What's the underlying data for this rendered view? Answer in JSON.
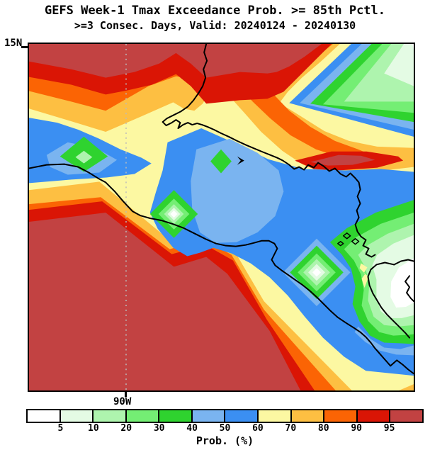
{
  "title": {
    "line1": "GEFS Week-1 Tmax Exceedance Prob. >= 85th Pctl.",
    "line2": ">=3 Consec. Days, Valid: 20240124 - 20240130"
  },
  "map": {
    "y_axis_label": "15N",
    "x_axis_label": "90W"
  },
  "palette": {
    "p0": "#ffffff",
    "p5": "#e4fbe4",
    "p10": "#aef4ae",
    "p20": "#74ee74",
    "p30": "#2fd32f",
    "p40": "#7ab4f0",
    "p50": "#3b8ff2",
    "p60": "#fcf8a2",
    "p70": "#fdbf42",
    "p80": "#fb6404",
    "p90": "#da1505",
    "p95": "#c24242",
    "coastline": "#000000",
    "gridline": "#bbbbbb"
  },
  "colorbar": {
    "label": "Prob. (%)",
    "tick_labels": [
      "5",
      "10",
      "20",
      "30",
      "40",
      "50",
      "60",
      "70",
      "80",
      "90",
      "95"
    ],
    "segment_colors": [
      "#ffffff",
      "#e4fbe4",
      "#aef4ae",
      "#74ee74",
      "#2fd32f",
      "#7ab4f0",
      "#3b8ff2",
      "#fcf8a2",
      "#fdbf42",
      "#fb6404",
      "#da1505",
      "#c24242"
    ]
  },
  "chart_data": {
    "type": "heatmap",
    "title": "GEFS Week-1 Tmax Exceedance Prob. >= 85th Pctl.",
    "subtitle": ">=3 Consec. Days, Valid: 20240124 - 20240130",
    "variable": "Probability (%) of Tmax >= 85th percentile for >=3 consecutive days",
    "units": "%",
    "legend_thresholds": [
      5,
      10,
      20,
      30,
      40,
      50,
      60,
      70,
      80,
      90,
      95
    ],
    "visible_axis_labels": {
      "latitude": "15N",
      "longitude": "90W"
    }
  }
}
